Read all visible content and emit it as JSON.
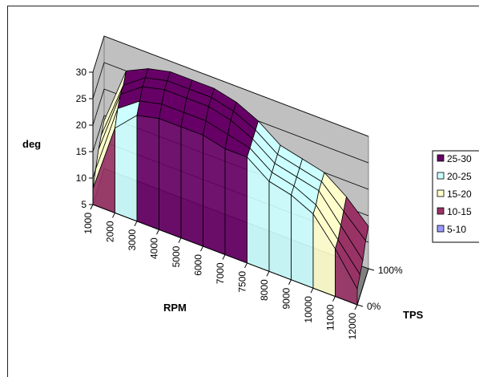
{
  "chart_data": {
    "type": "surface",
    "zlabel": "deg",
    "xlabel": "RPM",
    "ylabel": "TPS",
    "zlim": [
      5,
      30
    ],
    "z_ticks": [
      5,
      10,
      15,
      20,
      25,
      30
    ],
    "x_categories": [
      "1000",
      "2000",
      "3000",
      "4000",
      "5000",
      "6000",
      "7000",
      "7500",
      "8000",
      "9000",
      "10000",
      "11000",
      "12000"
    ],
    "y_categories": [
      "0%",
      "100%"
    ],
    "y_rows": 5,
    "values": [
      [
        8,
        21,
        25,
        26,
        26,
        26,
        25,
        25,
        22,
        21,
        19,
        14,
        8
      ],
      [
        10,
        23,
        26,
        27,
        27,
        27,
        26,
        25,
        22,
        21,
        19,
        14,
        9
      ],
      [
        12,
        24,
        27,
        28,
        28,
        28,
        27,
        25,
        22,
        21,
        20,
        15,
        10
      ],
      [
        13,
        24,
        27,
        28,
        28,
        28,
        27,
        25,
        22,
        21,
        20,
        16,
        12
      ],
      [
        14,
        25,
        27,
        28,
        28,
        28,
        27,
        25,
        22,
        21,
        20,
        17,
        13
      ]
    ],
    "legend": [
      "25-30",
      "20-25",
      "15-20",
      "10-15",
      "5-10"
    ],
    "legend_position": "right",
    "band_colors": [
      "#9999ff",
      "#993366",
      "#ffffcc",
      "#ccffff",
      "#660066"
    ],
    "grid": true
  }
}
